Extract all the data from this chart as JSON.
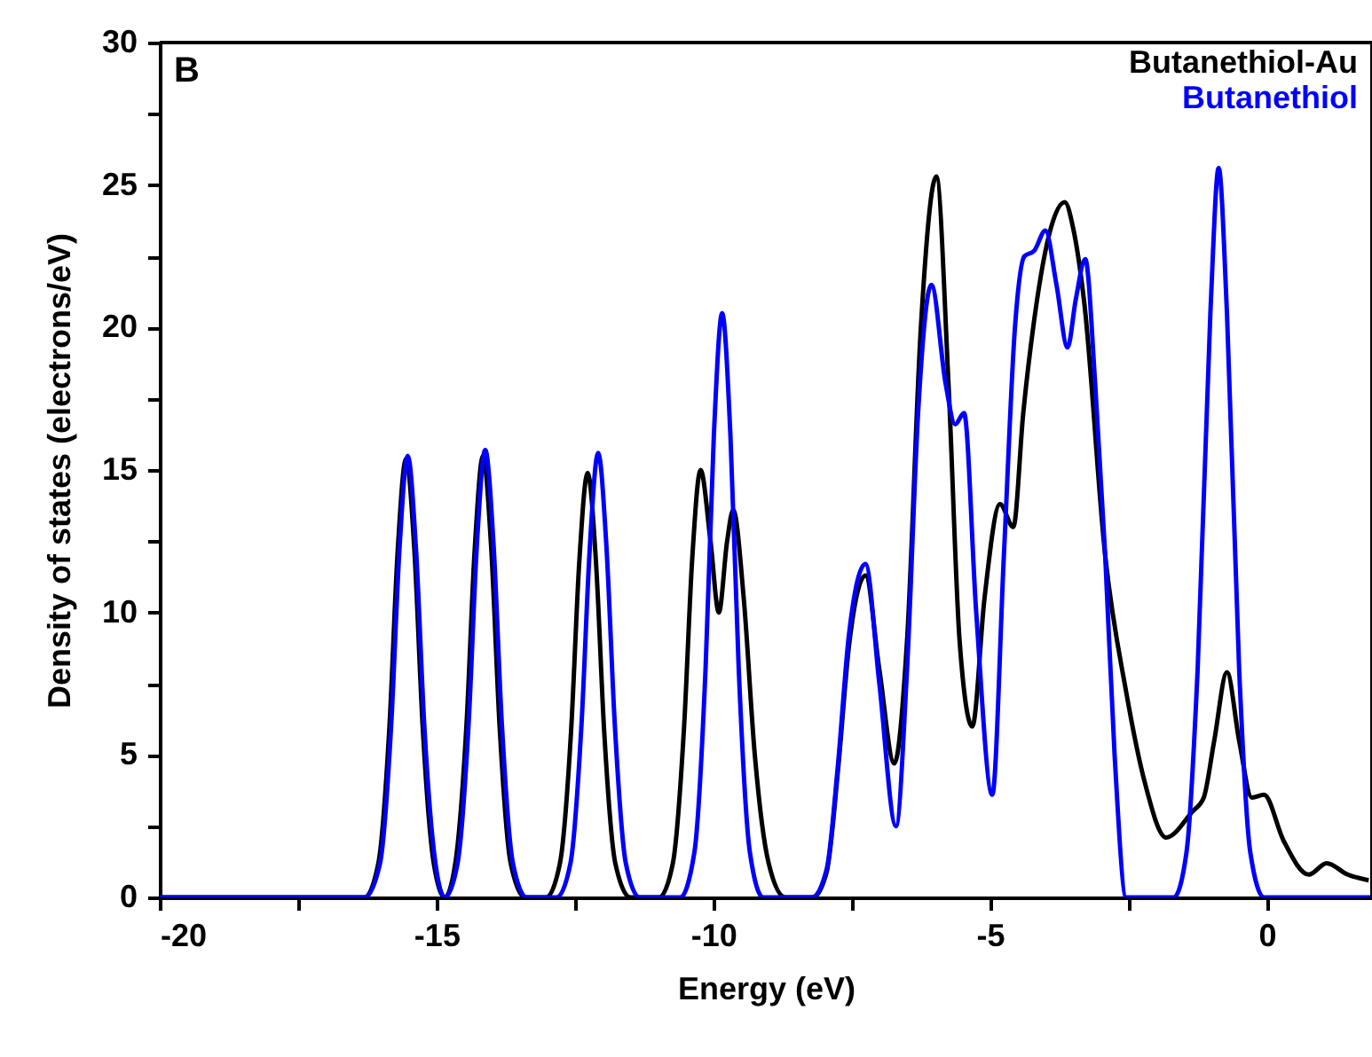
{
  "chart_data": {
    "type": "line",
    "xlabel": "Energy (eV)",
    "ylabel": "Density of states (electrons/eV)",
    "annotations": [
      "B"
    ],
    "xlim": [
      -20,
      1.9
    ],
    "ylim": [
      0,
      30
    ],
    "xticks": [
      -20,
      {
        "value": -17.5,
        "label": null
      },
      -15,
      {
        "value": -12.5,
        "label": null
      },
      -10,
      {
        "value": -7.5,
        "label": null
      },
      -5,
      {
        "value": -2.5,
        "label": null
      },
      0
    ],
    "yticks": [
      0,
      {
        "value": 2.5,
        "label": null
      },
      5,
      {
        "value": 7.5,
        "label": null
      },
      10,
      {
        "value": 12.5,
        "label": null
      },
      15,
      {
        "value": 17.5,
        "label": null
      },
      20,
      {
        "value": 22.5,
        "label": null
      },
      25,
      {
        "value": 27.5,
        "label": null
      },
      30
    ],
    "grid": false,
    "legend": "top right",
    "marker": "none",
    "line_style": "solid",
    "series": [
      {
        "name": "Butanethiol-Au",
        "color": "#000000",
        "x": [
          -20,
          -16.3,
          -16.05,
          -15.85,
          -15.7,
          -15.55,
          -15.4,
          -15.25,
          -15.05,
          -14.85,
          -14.66,
          -14.46,
          -14.31,
          -14.16,
          -14.01,
          -13.86,
          -13.66,
          -13.4,
          -13.02,
          -12.77,
          -12.57,
          -12.42,
          -12.27,
          -12.12,
          -11.97,
          -11.77,
          -11.5,
          -10.98,
          -10.73,
          -10.53,
          -10.38,
          -10.23,
          -10.05,
          -9.9,
          -9.75,
          -9.64,
          -9.45,
          -9.25,
          -9.0,
          -8.7,
          -8.2,
          -7.95,
          -7.75,
          -7.55,
          -7.25,
          -7.0,
          -6.73,
          -6.5,
          -6.25,
          -5.97,
          -5.75,
          -5.55,
          -5.32,
          -5.1,
          -4.82,
          -4.58,
          -4.4,
          -4.2,
          -3.9,
          -3.65,
          -3.5,
          -3.3,
          -2.92,
          -2.54,
          -2.2,
          -1.82,
          -1.35,
          -1.14,
          -0.95,
          -0.72,
          -0.5,
          -0.27,
          -0.05,
          0.3,
          0.76,
          1.08,
          1.46,
          1.84
        ],
        "values": [
          0,
          0,
          1.2,
          6.0,
          12.2,
          15.4,
          12.2,
          6.0,
          1.2,
          0,
          1.2,
          6.0,
          12.2,
          15.5,
          12.2,
          6.0,
          1.2,
          0,
          0,
          1.2,
          5.8,
          11.8,
          14.9,
          11.8,
          5.8,
          1.2,
          0,
          0,
          1.2,
          5.9,
          11.9,
          15.0,
          12.5,
          10.0,
          12.5,
          13.6,
          10.5,
          5.0,
          1.2,
          0,
          0,
          0.9,
          4.4,
          8.8,
          11.3,
          8.0,
          4.7,
          9,
          20,
          25.3,
          18,
          9,
          6.0,
          10.5,
          13.8,
          13.0,
          17,
          20.3,
          23.5,
          24.4,
          23.5,
          20.9,
          12.0,
          7.2,
          4.0,
          2.1,
          3.0,
          3.5,
          5.5,
          7.9,
          5.5,
          3.5,
          3.6,
          2.0,
          0.8,
          1.2,
          0.8,
          0.6
        ]
      },
      {
        "name": "Butanethiol",
        "color": "#0000ff",
        "x": [
          -20,
          -16.3,
          -16.02,
          -15.82,
          -15.67,
          -15.52,
          -15.37,
          -15.22,
          -15.02,
          -14.85,
          -14.62,
          -14.42,
          -14.27,
          -14.12,
          -13.97,
          -13.82,
          -13.62,
          -13.37,
          -12.83,
          -12.58,
          -12.38,
          -12.23,
          -12.08,
          -11.93,
          -11.78,
          -11.58,
          -11.33,
          -10.6,
          -10.34,
          -10.14,
          -9.99,
          -9.84,
          -9.69,
          -9.54,
          -9.34,
          -9.1,
          -8.22,
          -7.95,
          -7.75,
          -7.55,
          -7.25,
          -7.0,
          -6.7,
          -6.5,
          -6.3,
          -6.06,
          -5.8,
          -5.63,
          -5.47,
          -5.25,
          -4.96,
          -4.75,
          -4.55,
          -4.38,
          -4.2,
          -4.0,
          -3.8,
          -3.6,
          -3.45,
          -3.28,
          -3.1,
          -2.92,
          -2.75,
          -2.54,
          -1.68,
          -1.45,
          -1.25,
          -1.02,
          -0.87,
          -0.72,
          -0.5,
          -0.3,
          -0.05,
          1.9
        ],
        "values": [
          0,
          0,
          1.2,
          6.0,
          12.2,
          15.5,
          12.2,
          6.0,
          1.2,
          0,
          1.2,
          6.1,
          12.4,
          15.7,
          12.4,
          6.1,
          1.2,
          0,
          0,
          1.2,
          6.1,
          12.3,
          15.6,
          12.3,
          6.1,
          1.2,
          0,
          0,
          1.6,
          8.0,
          16.2,
          20.5,
          16.2,
          8.0,
          1.6,
          0,
          0,
          1.0,
          4.6,
          9.2,
          11.7,
          7.5,
          2.5,
          8,
          17,
          21.5,
          18,
          16.6,
          17.0,
          10,
          3.6,
          12,
          20,
          22.5,
          22.7,
          23.4,
          21.5,
          19.3,
          21,
          22.4,
          18,
          12.0,
          5,
          0,
          0,
          1.6,
          8.0,
          20.5,
          25.6,
          20.5,
          8,
          1.6,
          0,
          0
        ]
      }
    ]
  }
}
